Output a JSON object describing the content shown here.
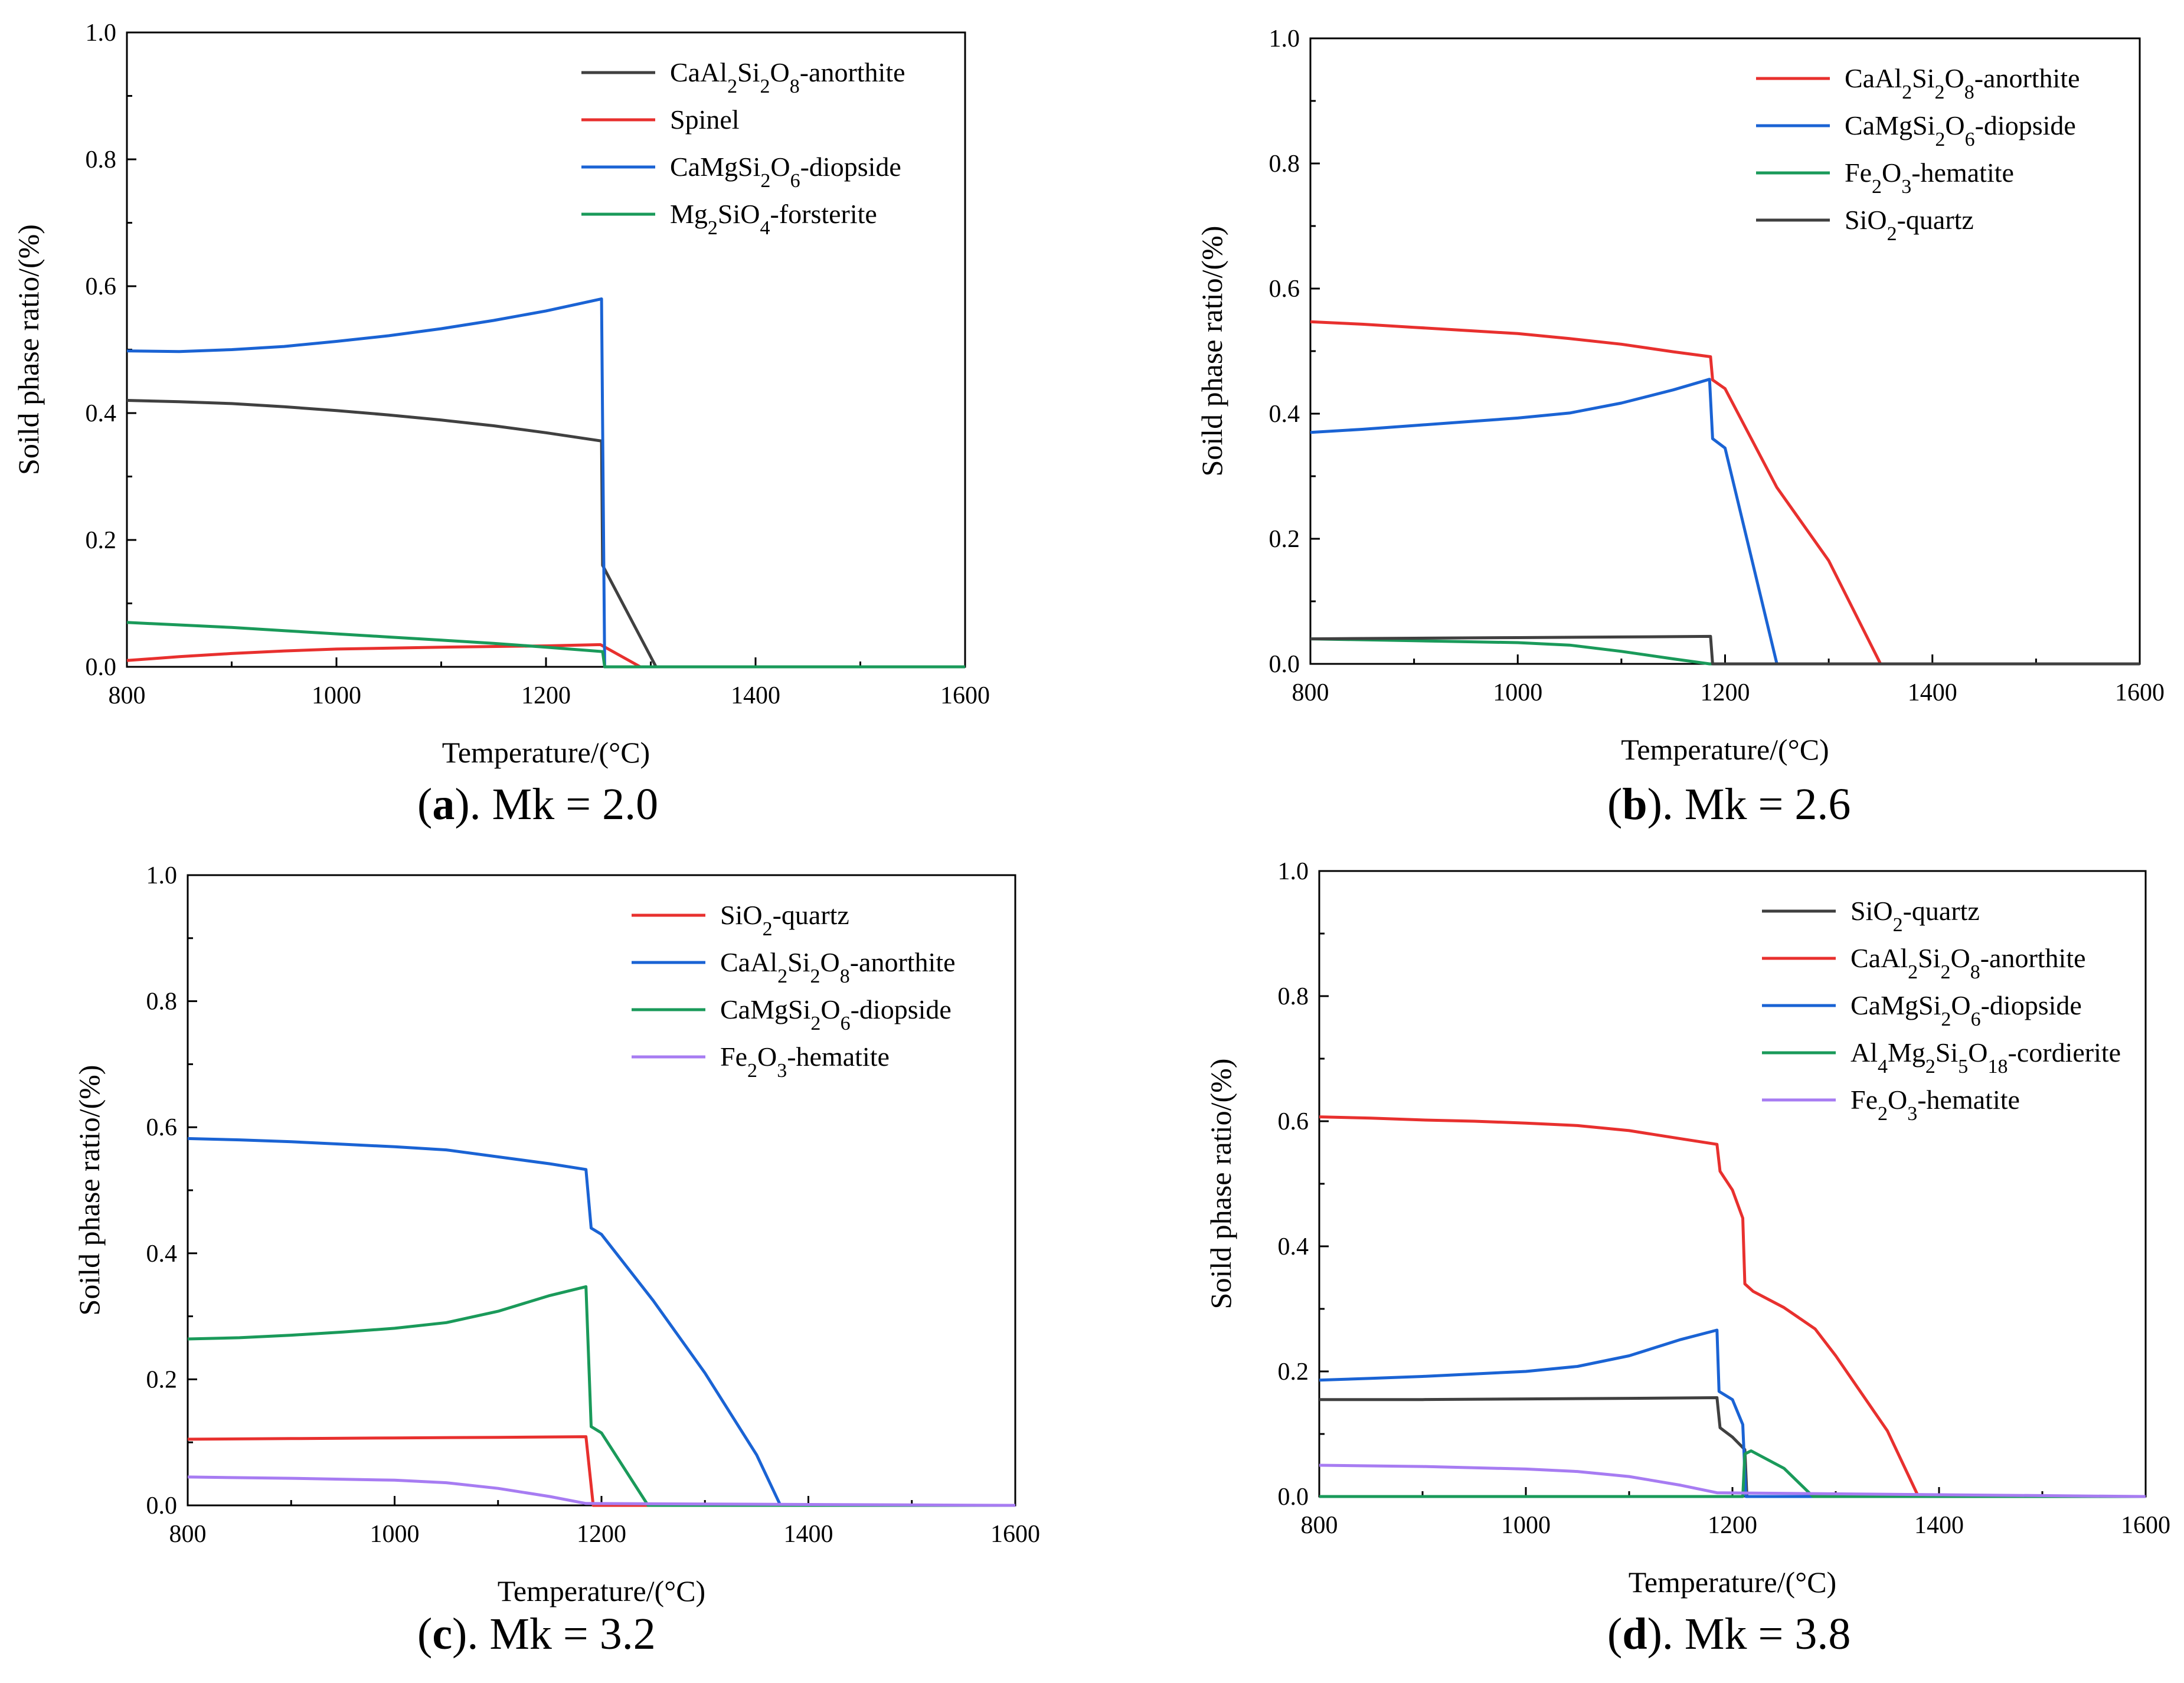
{
  "chart_data": [
    {
      "type": "line",
      "panel_letter": "a",
      "caption": ". Mk = 2.0",
      "xlabel": "Temperature/(°C)",
      "ylabel": "Soild phase ratio/(%)",
      "xlim": [
        800,
        1600
      ],
      "ylim": [
        0,
        1.0
      ],
      "xticks": [
        "800",
        "1000",
        "1200",
        "1400",
        "1600"
      ],
      "yticks": [
        "0.0",
        "0.2",
        "0.4",
        "0.6",
        "0.8",
        "1.0"
      ],
      "legend_position": "top-right",
      "series": [
        {
          "name": "CaAl₂Si₂O₈-anorthite",
          "color": "#404040",
          "points": [
            [
              800,
              0.42
            ],
            [
              850,
              0.418
            ],
            [
              900,
              0.415
            ],
            [
              950,
              0.41
            ],
            [
              1000,
              0.404
            ],
            [
              1050,
              0.397
            ],
            [
              1100,
              0.389
            ],
            [
              1150,
              0.38
            ],
            [
              1200,
              0.369
            ],
            [
              1253,
              0.356
            ],
            [
              1254,
              0.16
            ],
            [
              1305,
              0.0
            ],
            [
              1600,
              0.0
            ]
          ]
        },
        {
          "name": "Spinel",
          "color": "#e8302e",
          "points": [
            [
              800,
              0.01
            ],
            [
              850,
              0.016
            ],
            [
              900,
              0.021
            ],
            [
              950,
              0.025
            ],
            [
              1000,
              0.028
            ],
            [
              1100,
              0.031
            ],
            [
              1200,
              0.033
            ],
            [
              1252,
              0.035
            ],
            [
              1290,
              0.0
            ],
            [
              1600,
              0.0
            ]
          ]
        },
        {
          "name": "CaMgSi₂O₆-diopside",
          "color": "#1a63d4",
          "points": [
            [
              800,
              0.498
            ],
            [
              850,
              0.497
            ],
            [
              900,
              0.5
            ],
            [
              950,
              0.505
            ],
            [
              1000,
              0.513
            ],
            [
              1050,
              0.522
            ],
            [
              1100,
              0.533
            ],
            [
              1150,
              0.546
            ],
            [
              1200,
              0.561
            ],
            [
              1253,
              0.58
            ],
            [
              1256,
              0.0
            ],
            [
              1600,
              0.0
            ]
          ]
        },
        {
          "name": "Mg₂SiO₄-forsterite",
          "color": "#1a9a5a",
          "points": [
            [
              800,
              0.07
            ],
            [
              850,
              0.066
            ],
            [
              900,
              0.062
            ],
            [
              950,
              0.057
            ],
            [
              1000,
              0.052
            ],
            [
              1050,
              0.047
            ],
            [
              1100,
              0.042
            ],
            [
              1150,
              0.037
            ],
            [
              1200,
              0.031
            ],
            [
              1254,
              0.024
            ],
            [
              1256,
              0.0
            ],
            [
              1600,
              0.0
            ]
          ]
        }
      ]
    },
    {
      "type": "line",
      "panel_letter": "b",
      "caption": ". Mk = 2.6",
      "xlabel": "Temperature/(°C)",
      "ylabel": "Soild phase ratio/(%)",
      "xlim": [
        800,
        1600
      ],
      "ylim": [
        0,
        1.0
      ],
      "xticks": [
        "800",
        "1000",
        "1200",
        "1400",
        "1600"
      ],
      "yticks": [
        "0.0",
        "0.2",
        "0.4",
        "0.6",
        "0.8",
        "1.0"
      ],
      "legend_position": "top-right",
      "series": [
        {
          "name": "CaAl₂Si₂O₈-anorthite",
          "color": "#e8302e",
          "points": [
            [
              800,
              0.547
            ],
            [
              850,
              0.543
            ],
            [
              900,
              0.538
            ],
            [
              950,
              0.533
            ],
            [
              1000,
              0.528
            ],
            [
              1050,
              0.52
            ],
            [
              1100,
              0.511
            ],
            [
              1150,
              0.499
            ],
            [
              1186,
              0.491
            ],
            [
              1188,
              0.454
            ],
            [
              1200,
              0.44
            ],
            [
              1250,
              0.282
            ],
            [
              1300,
              0.165
            ],
            [
              1350,
              0.0
            ],
            [
              1600,
              0.0
            ]
          ]
        },
        {
          "name": "CaMgSi₂O₆-diopside",
          "color": "#1a63d4",
          "points": [
            [
              800,
              0.37
            ],
            [
              850,
              0.375
            ],
            [
              900,
              0.381
            ],
            [
              950,
              0.387
            ],
            [
              1000,
              0.393
            ],
            [
              1050,
              0.401
            ],
            [
              1100,
              0.417
            ],
            [
              1150,
              0.438
            ],
            [
              1185,
              0.455
            ],
            [
              1188,
              0.36
            ],
            [
              1200,
              0.345
            ],
            [
              1250,
              0.0
            ],
            [
              1600,
              0.0
            ]
          ]
        },
        {
          "name": "Fe₂O₃-hematite",
          "color": "#1a9a5a",
          "points": [
            [
              800,
              0.04
            ],
            [
              900,
              0.037
            ],
            [
              1000,
              0.034
            ],
            [
              1050,
              0.03
            ],
            [
              1100,
              0.02
            ],
            [
              1150,
              0.008
            ],
            [
              1185,
              0.0
            ],
            [
              1600,
              0.0
            ]
          ]
        },
        {
          "name": "SiO₂-quartz",
          "color": "#404040",
          "points": [
            [
              800,
              0.04
            ],
            [
              900,
              0.041
            ],
            [
              1000,
              0.042
            ],
            [
              1100,
              0.043
            ],
            [
              1186,
              0.044
            ],
            [
              1188,
              0.0
            ],
            [
              1600,
              0.0
            ]
          ]
        }
      ]
    },
    {
      "type": "line",
      "panel_letter": "c",
      "caption": ". Mk = 3.2",
      "xlabel": "Temperature/(°C)",
      "ylabel": "Soild phase ratio/(%)",
      "xlim": [
        800,
        1600
      ],
      "ylim": [
        0,
        1.0
      ],
      "xticks": [
        "800",
        "1000",
        "1200",
        "1400",
        "1600"
      ],
      "yticks": [
        "0.0",
        "0.2",
        "0.4",
        "0.6",
        "0.8",
        "1.0"
      ],
      "legend_position": "top-right",
      "series": [
        {
          "name": "SiO₂-quartz",
          "color": "#e8302e",
          "points": [
            [
              800,
              0.105
            ],
            [
              900,
              0.106
            ],
            [
              1000,
              0.107
            ],
            [
              1100,
              0.108
            ],
            [
              1185,
              0.109
            ],
            [
              1192,
              0.0
            ],
            [
              1600,
              0.0
            ]
          ]
        },
        {
          "name": "CaAl₂Si₂O₈-anorthite",
          "color": "#1a63d4",
          "points": [
            [
              800,
              0.582
            ],
            [
              850,
              0.58
            ],
            [
              900,
              0.577
            ],
            [
              950,
              0.573
            ],
            [
              1000,
              0.569
            ],
            [
              1050,
              0.564
            ],
            [
              1100,
              0.553
            ],
            [
              1150,
              0.542
            ],
            [
              1185,
              0.533
            ],
            [
              1190,
              0.44
            ],
            [
              1200,
              0.43
            ],
            [
              1250,
              0.325
            ],
            [
              1300,
              0.21
            ],
            [
              1350,
              0.08
            ],
            [
              1373,
              0.0
            ],
            [
              1600,
              0.0
            ]
          ]
        },
        {
          "name": "CaMgSi₂O₆-diopside",
          "color": "#1a9a5a",
          "points": [
            [
              800,
              0.264
            ],
            [
              850,
              0.266
            ],
            [
              900,
              0.27
            ],
            [
              950,
              0.275
            ],
            [
              1000,
              0.281
            ],
            [
              1050,
              0.29
            ],
            [
              1100,
              0.308
            ],
            [
              1150,
              0.333
            ],
            [
              1185,
              0.347
            ],
            [
              1190,
              0.125
            ],
            [
              1200,
              0.115
            ],
            [
              1245,
              0.0
            ],
            [
              1600,
              0.0
            ]
          ]
        },
        {
          "name": "Fe₂O₃-hematite",
          "color": "#a77cf2",
          "points": [
            [
              800,
              0.045
            ],
            [
              900,
              0.043
            ],
            [
              1000,
              0.04
            ],
            [
              1050,
              0.036
            ],
            [
              1100,
              0.027
            ],
            [
              1150,
              0.014
            ],
            [
              1185,
              0.003
            ],
            [
              1600,
              0.0
            ]
          ]
        }
      ]
    },
    {
      "type": "line",
      "panel_letter": "d",
      "caption": ". Mk = 3.8",
      "xlabel": "Temperature/(°C)",
      "ylabel": "Soild phase ratio/(%)",
      "xlim": [
        800,
        1600
      ],
      "ylim": [
        0,
        1.0
      ],
      "xticks": [
        "800",
        "1000",
        "1200",
        "1400",
        "1600"
      ],
      "yticks": [
        "0.0",
        "0.2",
        "0.4",
        "0.6",
        "0.8",
        "1.0"
      ],
      "legend_position": "top-right",
      "series": [
        {
          "name": "SiO₂-quartz",
          "color": "#404040",
          "points": [
            [
              800,
              0.155
            ],
            [
              900,
              0.155
            ],
            [
              1000,
              0.156
            ],
            [
              1100,
              0.157
            ],
            [
              1185,
              0.158
            ],
            [
              1188,
              0.11
            ],
            [
              1200,
              0.095
            ],
            [
              1212,
              0.075
            ],
            [
              1214,
              0.0
            ],
            [
              1600,
              0.0
            ]
          ]
        },
        {
          "name": "CaAl₂Si₂O₈-anorthite",
          "color": "#e8302e",
          "points": [
            [
              800,
              0.607
            ],
            [
              850,
              0.605
            ],
            [
              900,
              0.602
            ],
            [
              950,
              0.6
            ],
            [
              1000,
              0.597
            ],
            [
              1050,
              0.593
            ],
            [
              1100,
              0.585
            ],
            [
              1150,
              0.572
            ],
            [
              1185,
              0.563
            ],
            [
              1188,
              0.52
            ],
            [
              1200,
              0.49
            ],
            [
              1210,
              0.445
            ],
            [
              1212,
              0.34
            ],
            [
              1220,
              0.328
            ],
            [
              1250,
              0.302
            ],
            [
              1280,
              0.268
            ],
            [
              1300,
              0.225
            ],
            [
              1350,
              0.105
            ],
            [
              1380,
              0.0
            ],
            [
              1600,
              0.0
            ]
          ]
        },
        {
          "name": "CaMgSi₂O₆-diopside",
          "color": "#1a63d4",
          "points": [
            [
              800,
              0.186
            ],
            [
              850,
              0.189
            ],
            [
              900,
              0.192
            ],
            [
              950,
              0.196
            ],
            [
              1000,
              0.2
            ],
            [
              1050,
              0.208
            ],
            [
              1100,
              0.225
            ],
            [
              1150,
              0.251
            ],
            [
              1185,
              0.266
            ],
            [
              1187,
              0.168
            ],
            [
              1200,
              0.155
            ],
            [
              1210,
              0.115
            ],
            [
              1213,
              0.0
            ],
            [
              1600,
              0.0
            ]
          ]
        },
        {
          "name": "Al₄Mg₂Si₅O₁₈-cordierite",
          "color": "#1a9a5a",
          "points": [
            [
              800,
              0.0
            ],
            [
              1210,
              0.0
            ],
            [
              1212,
              0.068
            ],
            [
              1218,
              0.073
            ],
            [
              1250,
              0.045
            ],
            [
              1278,
              0.0
            ],
            [
              1600,
              0.0
            ]
          ]
        },
        {
          "name": "Fe₂O₃-hematite",
          "color": "#a77cf2",
          "points": [
            [
              800,
              0.05
            ],
            [
              900,
              0.048
            ],
            [
              1000,
              0.044
            ],
            [
              1050,
              0.04
            ],
            [
              1100,
              0.032
            ],
            [
              1150,
              0.018
            ],
            [
              1185,
              0.006
            ],
            [
              1600,
              0.0
            ]
          ]
        }
      ]
    }
  ]
}
